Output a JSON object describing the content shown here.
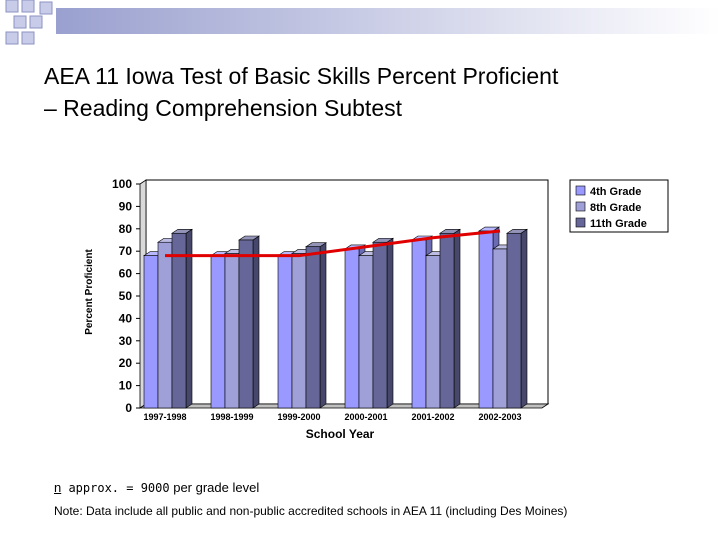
{
  "slide": {
    "title_line1": "AEA 11 Iowa Test of Basic Skills Percent Proficient",
    "title_line2": "– Reading Comprehension Subtest",
    "note_bullet": "n",
    "note_mono": " approx. = 9000",
    "note_rest": " per grade level",
    "footnote": "Note: Data include all public and non-public accredited schools in AEA 11 (including Des Moines)"
  },
  "chart_data": {
    "type": "bar",
    "title": "",
    "xlabel": "School Year",
    "ylabel": "Percent Proficient",
    "ylim": [
      0,
      100
    ],
    "yticks": [
      0,
      10,
      20,
      30,
      40,
      50,
      60,
      70,
      80,
      90,
      100
    ],
    "categories": [
      "1997-1998",
      "1998-1999",
      "1999-2000",
      "2000-2001",
      "2001-2002",
      "2002-2003"
    ],
    "series": [
      {
        "name": "4th Grade",
        "color": "#9999FF",
        "values": [
          68,
          68,
          68,
          71,
          75,
          79
        ]
      },
      {
        "name": "8th Grade",
        "color": "#A0A0D8",
        "values": [
          74,
          69,
          69,
          68,
          68,
          71
        ]
      },
      {
        "name": "11th Grade",
        "color": "#666699",
        "values": [
          78,
          75,
          72,
          74,
          78,
          78
        ]
      }
    ],
    "trend_line": {
      "color": "#E00000",
      "values": [
        68,
        68,
        68,
        72,
        76,
        79
      ]
    },
    "grid": false,
    "legend": "top-right"
  }
}
